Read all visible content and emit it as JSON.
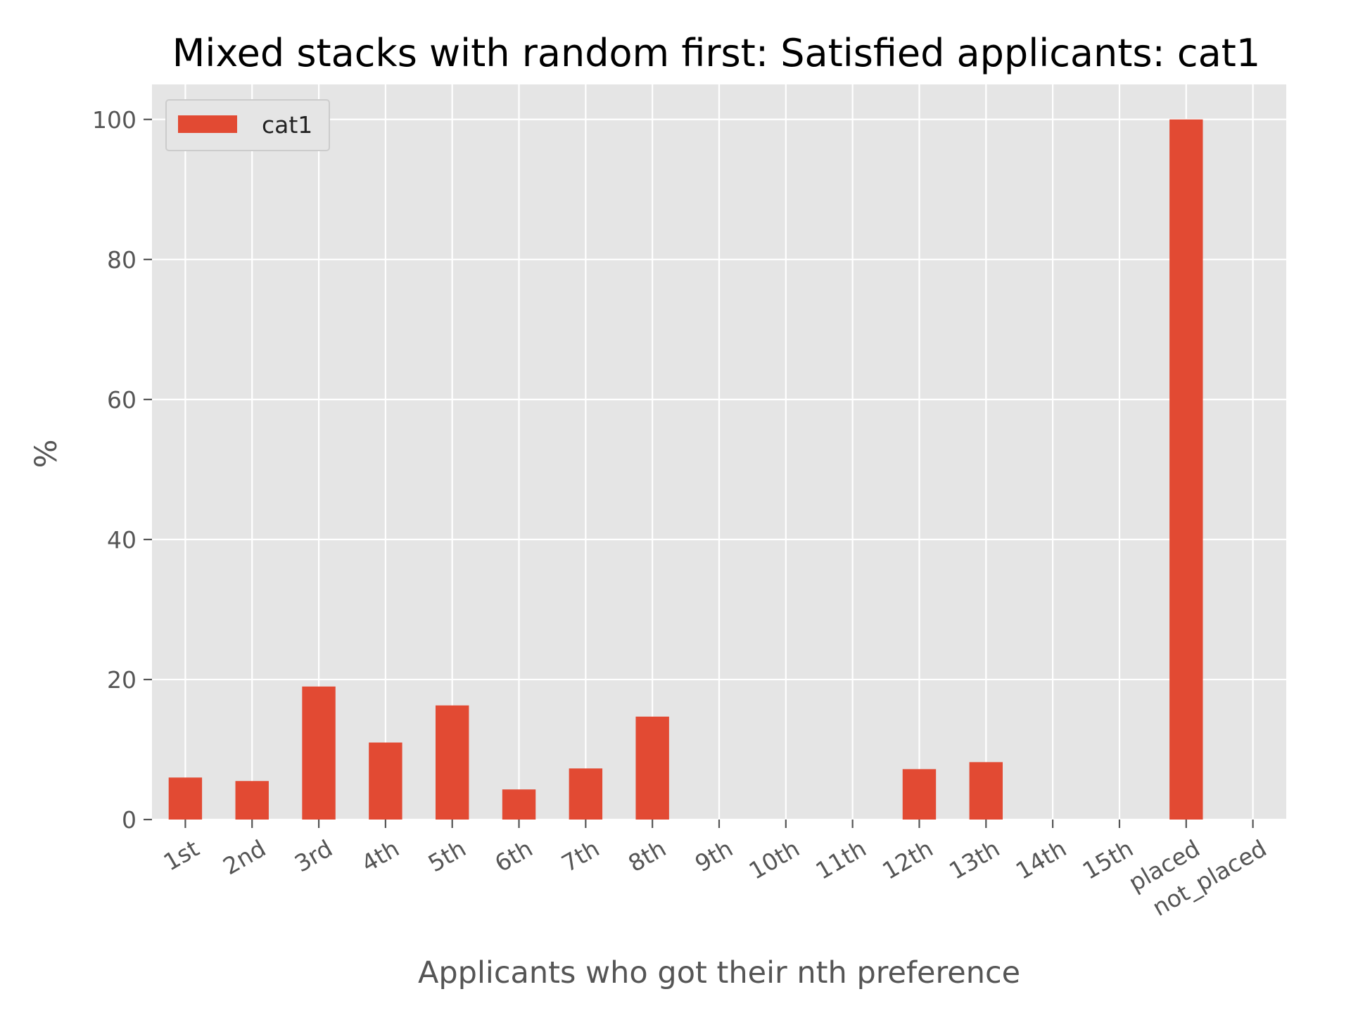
{
  "chart_data": {
    "type": "bar",
    "title": "Mixed stacks with random first: Satisfied applicants: cat1",
    "xlabel": "Applicants who got their nth preference",
    "ylabel": "%",
    "categories": [
      "1st",
      "2nd",
      "3rd",
      "4th",
      "5th",
      "6th",
      "7th",
      "8th",
      "9th",
      "10th",
      "11th",
      "12th",
      "13th",
      "14th",
      "15th",
      "placed",
      "not_placed"
    ],
    "series": [
      {
        "name": "cat1",
        "color": "#E24A33",
        "values": [
          6.0,
          5.5,
          19.0,
          11.0,
          16.3,
          4.3,
          7.3,
          14.7,
          0,
          0,
          0,
          7.2,
          8.2,
          0,
          0,
          100,
          0
        ]
      }
    ],
    "ylim": [
      0,
      105
    ],
    "yticks": [
      0,
      20,
      40,
      60,
      80,
      100
    ],
    "grid": true,
    "legend_position": "top-left",
    "colors": {
      "plot_background": "#E5E5E5",
      "grid": "#FFFFFF",
      "bar": "#E24A33"
    }
  }
}
